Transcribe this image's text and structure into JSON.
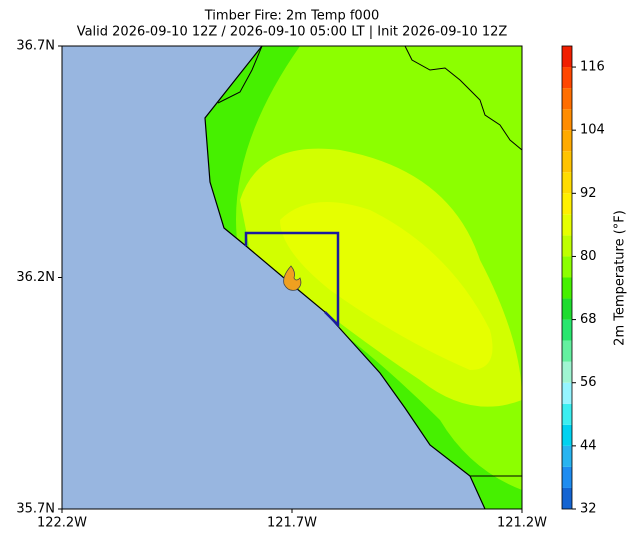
{
  "title": "Timber Fire: 2m Temp f000",
  "subtitle": "Valid 2026-09-10 12Z / 2026-09-10 05:00 LT | Init 2026-09-10 12Z",
  "map": {
    "xlim": [
      -122.2,
      -121.2
    ],
    "ylim": [
      35.7,
      36.7
    ],
    "xticks": [
      {
        "value": -122.2,
        "label": "122.2W"
      },
      {
        "value": -121.7,
        "label": "121.7W"
      },
      {
        "value": -121.2,
        "label": "121.2W"
      }
    ],
    "yticks": [
      {
        "value": 35.7,
        "label": "35.7N"
      },
      {
        "value": 36.2,
        "label": "36.2N"
      },
      {
        "value": 36.7,
        "label": "36.7N"
      }
    ]
  },
  "colorbar": {
    "label": "2m Temperature (°F)",
    "levels": [
      32,
      36,
      40,
      44,
      48,
      52,
      56,
      60,
      64,
      68,
      72,
      76,
      80,
      84,
      88,
      92,
      96,
      100,
      104,
      108,
      112,
      116,
      120
    ],
    "colors": [
      "#1464d2",
      "#1e8cf0",
      "#28b4f0",
      "#00d2f0",
      "#3ceef0",
      "#96f5ff",
      "#a0f5d2",
      "#64f0a0",
      "#28e66e",
      "#1edc2e",
      "#46f000",
      "#8cff00",
      "#beff00",
      "#e6ff00",
      "#fff000",
      "#ffdc00",
      "#ffc300",
      "#ffaa00",
      "#ff8c00",
      "#ff6e00",
      "#ff4600",
      "#f01e00"
    ],
    "ticks": [
      32,
      44,
      56,
      68,
      80,
      92,
      104,
      116
    ]
  }
}
